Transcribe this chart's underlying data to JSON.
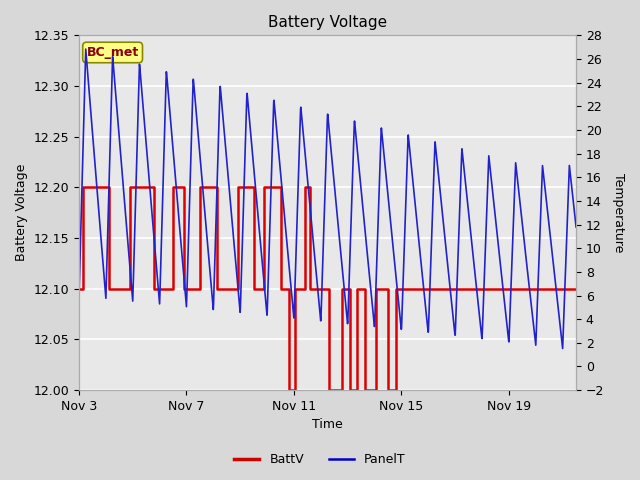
{
  "title": "Battery Voltage",
  "xlabel": "Time",
  "ylabel_left": "Battery Voltage",
  "ylabel_right": "Temperature",
  "label_box_text": "BC_met",
  "ylim_left": [
    12.0,
    12.35
  ],
  "ylim_right": [
    -2,
    28
  ],
  "outer_bg": "#d8d8d8",
  "plot_bg": "#e8e8e8",
  "legend_items": [
    "BattV",
    "PanelT"
  ],
  "legend_colors": [
    "#cc0000",
    "#0000cc"
  ],
  "xtick_positions": [
    3,
    7,
    11,
    15,
    19
  ],
  "xtick_labels": [
    "Nov 3",
    "Nov 7",
    "Nov 11",
    "Nov 15",
    "Nov 19"
  ],
  "xlim": [
    3,
    21.5
  ],
  "batt_color": "#dd0000",
  "panel_color": "#2222cc",
  "yticks_left": [
    12.0,
    12.05,
    12.1,
    12.15,
    12.2,
    12.25,
    12.3,
    12.35
  ],
  "yticks_right": [
    -2,
    0,
    2,
    4,
    6,
    8,
    10,
    12,
    14,
    16,
    18,
    20,
    22,
    24,
    26,
    28
  ],
  "batt_t": [
    3.0,
    3.15,
    3.15,
    4.1,
    4.1,
    4.9,
    4.9,
    5.8,
    5.8,
    6.5,
    6.5,
    6.9,
    6.9,
    7.5,
    7.5,
    8.15,
    8.15,
    8.9,
    8.9,
    9.5,
    9.5,
    9.9,
    9.9,
    10.5,
    10.5,
    10.8,
    10.8,
    11.05,
    11.05,
    11.4,
    11.4,
    11.6,
    11.6,
    12.3,
    12.3,
    12.8,
    12.8,
    13.1,
    13.1,
    13.35,
    13.35,
    13.65,
    13.65,
    14.05,
    14.05,
    14.5,
    14.5,
    14.8,
    14.8,
    15.2,
    15.2,
    16.0,
    16.0,
    21.5
  ],
  "batt_v": [
    12.1,
    12.1,
    12.2,
    12.2,
    12.1,
    12.1,
    12.2,
    12.2,
    12.1,
    12.1,
    12.2,
    12.2,
    12.1,
    12.1,
    12.2,
    12.2,
    12.1,
    12.1,
    12.2,
    12.2,
    12.1,
    12.1,
    12.2,
    12.2,
    12.1,
    12.1,
    12.0,
    12.0,
    12.1,
    12.1,
    12.2,
    12.2,
    12.1,
    12.1,
    12.0,
    12.0,
    12.1,
    12.1,
    12.0,
    12.0,
    12.1,
    12.1,
    12.0,
    12.0,
    12.1,
    12.1,
    12.0,
    12.0,
    12.1,
    12.1,
    12.1,
    12.1,
    12.1,
    12.1
  ]
}
